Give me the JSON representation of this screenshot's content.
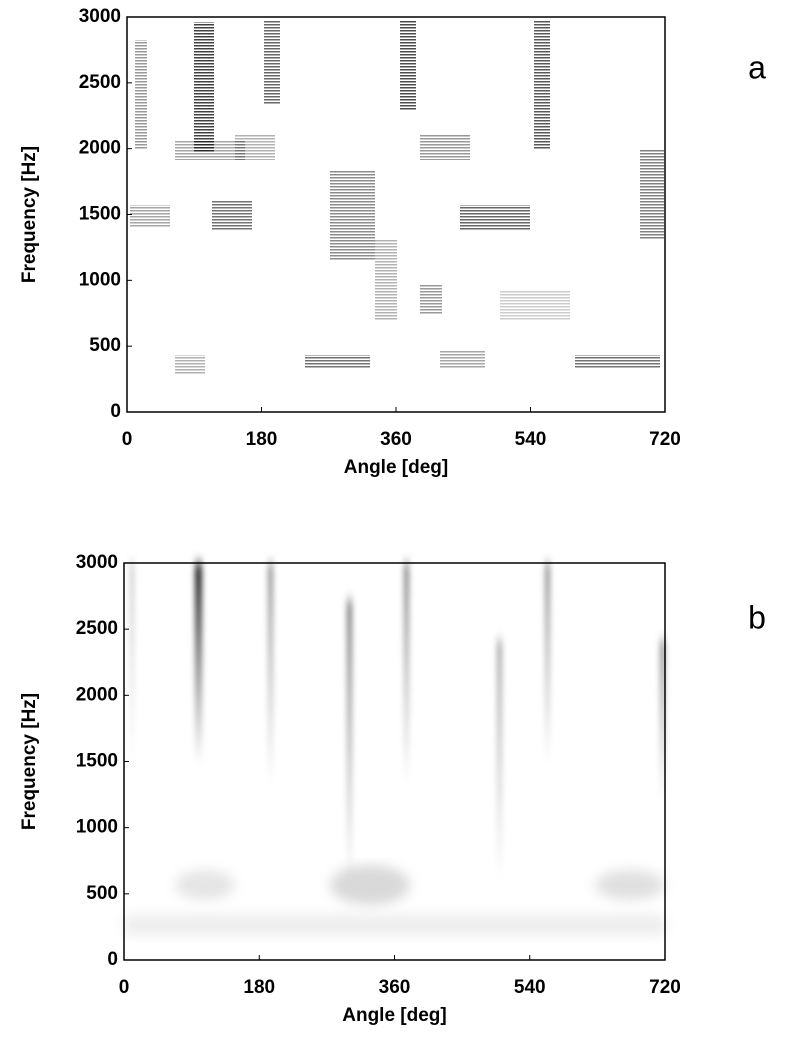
{
  "chart_data": [
    {
      "type": "spectrogram",
      "panel_label": "a",
      "xlabel": "Angle [deg]",
      "ylabel": "Frequency [Hz]",
      "xlim": [
        0,
        720
      ],
      "xticks": [
        0,
        180,
        360,
        540,
        720
      ],
      "ylim": [
        0,
        3000
      ],
      "yticks": [
        0,
        500,
        1000,
        1500,
        2000,
        2500,
        3000
      ]
    },
    {
      "type": "spectrogram",
      "panel_label": "b",
      "xlabel": "Angle [deg]",
      "ylabel": "Frequency [Hz]",
      "xlim": [
        0,
        720
      ],
      "xticks": [
        0,
        180,
        360,
        540,
        720
      ],
      "ylim": [
        0,
        3000
      ],
      "yticks": [
        0,
        500,
        1000,
        1500,
        2000,
        2500,
        3000
      ]
    }
  ]
}
